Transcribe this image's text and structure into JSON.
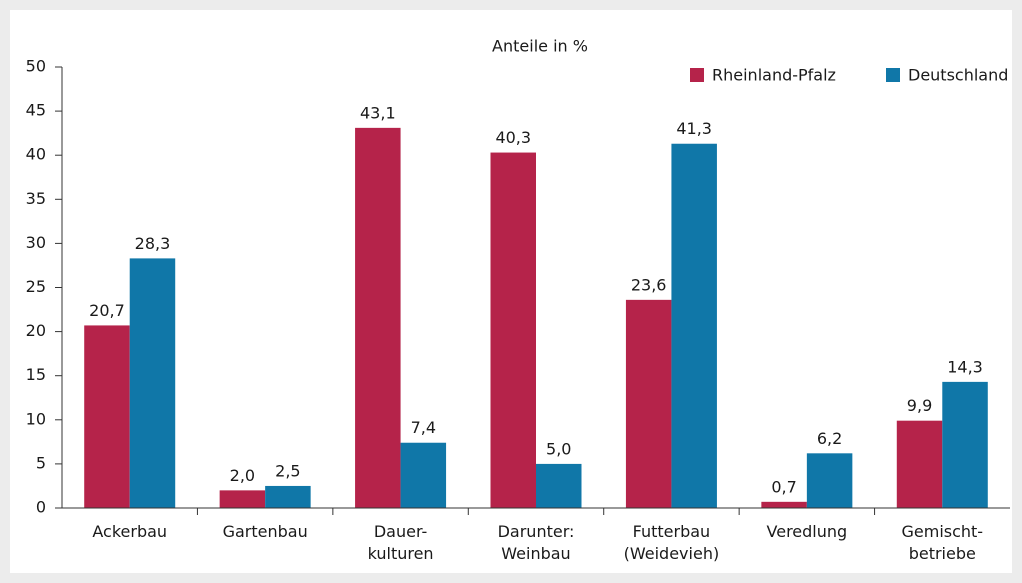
{
  "chart_data": {
    "type": "bar",
    "title": "Anteile in %",
    "categories": [
      [
        "Ackerbau"
      ],
      [
        "Gartenbau"
      ],
      [
        "Dauer-",
        "kulturen"
      ],
      [
        "Darunter:",
        "Weinbau"
      ],
      [
        "Futterbau",
        "(Weidevieh)"
      ],
      [
        "Veredlung"
      ],
      [
        "Gemischt-",
        "betriebe"
      ]
    ],
    "series": [
      {
        "name": "Rheinland-Pfalz",
        "color": "#b5234a",
        "values": [
          20.7,
          2.0,
          43.1,
          40.3,
          23.6,
          0.7,
          9.9
        ],
        "value_labels": [
          "20,7",
          "2,0",
          "43,1",
          "40,3",
          "23,6",
          "0,7",
          "9,9"
        ]
      },
      {
        "name": "Deutschland",
        "color": "#1077a8",
        "values": [
          28.3,
          2.5,
          7.4,
          5.0,
          41.3,
          6.2,
          14.3
        ],
        "value_labels": [
          "28,3",
          "2,5",
          "7,4",
          "5,0",
          "41,3",
          "6,2",
          "14,3"
        ]
      }
    ],
    "ylim": [
      0,
      50
    ],
    "yticks": [
      0,
      5,
      10,
      15,
      20,
      25,
      30,
      35,
      40,
      45,
      50
    ],
    "legend": "top-right"
  }
}
